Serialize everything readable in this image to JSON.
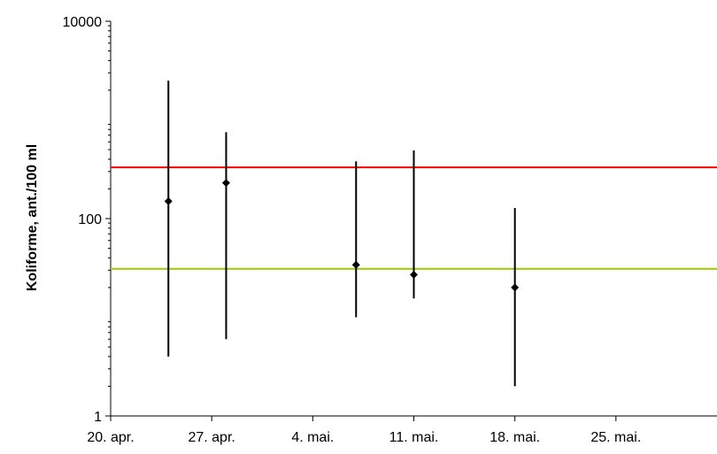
{
  "chart_data": {
    "type": "scatter",
    "title": "",
    "xlabel": "",
    "ylabel": "Koliforme, ant./100 ml",
    "yscale": "log",
    "ylim": [
      1,
      10000
    ],
    "y_ticks": [
      {
        "value": 1,
        "label": "1"
      },
      {
        "value": 100,
        "label": "100"
      },
      {
        "value": 10000,
        "label": "10000"
      }
    ],
    "x_ticks": [
      {
        "value": "2000-04-20",
        "label": "20. apr."
      },
      {
        "value": "2000-04-27",
        "label": "27. apr."
      },
      {
        "value": "2000-05-04",
        "label": "4. mai."
      },
      {
        "value": "2000-05-11",
        "label": "11. mai."
      },
      {
        "value": "2000-05-18",
        "label": "18. mai."
      },
      {
        "value": "2000-05-25",
        "label": "25. mai."
      }
    ],
    "xlim": [
      "2000-04-20",
      "2000-06-01"
    ],
    "grid": false,
    "points": [
      {
        "x": "2000-04-24",
        "y": 150,
        "y_low": 4,
        "y_high": 2500
      },
      {
        "x": "2000-04-28",
        "y": 230,
        "y_low": 6,
        "y_high": 750
      },
      {
        "x": "2000-05-07",
        "y": 34,
        "y_low": 10,
        "y_high": 380
      },
      {
        "x": "2000-05-11",
        "y": 27,
        "y_low": 15.5,
        "y_high": 490
      },
      {
        "x": "2000-05-18",
        "y": 20,
        "y_low": 2,
        "y_high": 128
      }
    ],
    "reference_lines": [
      {
        "y": 330,
        "color": "#ff0000"
      },
      {
        "y": 31,
        "color": "#99cc00"
      }
    ],
    "marker_color": "#000000"
  }
}
